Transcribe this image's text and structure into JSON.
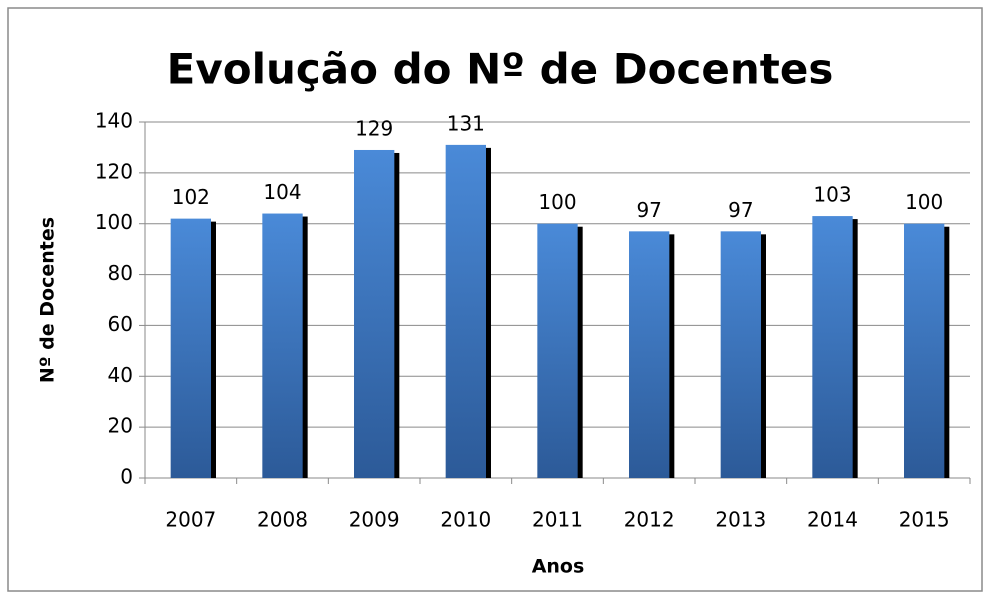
{
  "chart_data": {
    "type": "bar",
    "title": "Evolução do Nº de Docentes",
    "x_label": "Anos",
    "y_label": "Nº de Docentes",
    "categories": [
      "2007",
      "2008",
      "2009",
      "2010",
      "2011",
      "2012",
      "2013",
      "2014",
      "2015"
    ],
    "values": [
      102,
      104,
      129,
      131,
      100,
      97,
      97,
      103,
      100
    ],
    "color": "#3a75c4",
    "ylim": [
      0,
      140
    ],
    "yticks": [
      0,
      20,
      40,
      60,
      80,
      100,
      120,
      140
    ],
    "grid": true
  }
}
